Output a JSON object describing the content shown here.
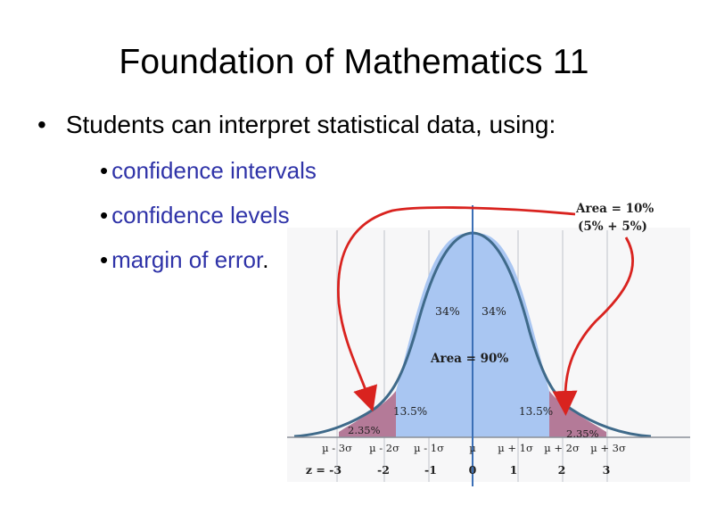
{
  "title": "Foundation of Mathematics 11",
  "main_bullet": "Students can interpret statistical data, using:",
  "sub_bullets": [
    {
      "text": "confidence intervals",
      "suffix": ""
    },
    {
      "text": "confidence levels",
      "suffix": ""
    },
    {
      "text": "margin of error",
      "suffix": "."
    }
  ],
  "figure": {
    "area_outer_line1": "Area = 10%",
    "area_outer_line2": "(5% + 5%)",
    "area_inner": "Area = 90%",
    "pct_34_left": "34%",
    "pct_34_right": "34%",
    "pct_135_left": "13.5%",
    "pct_135_right": "13.5%",
    "pct_235_left": "2.35%",
    "pct_235_right": "2.35%",
    "sigma_labels": [
      "µ - 3σ",
      "µ - 2σ",
      "µ - 1σ",
      "µ",
      "µ + 1σ",
      "µ + 2σ",
      "µ + 3σ"
    ],
    "z_prefix": "z = -3",
    "z_labels": [
      "-2",
      "-1",
      "0",
      "1",
      "2",
      "3"
    ],
    "colors": {
      "middle_fill": "#a9c6f2",
      "tail_fill": "#b47a98",
      "curve": "#3f6a8a",
      "arrow": "#d9231f",
      "axis_vertical": "#3b6fb6",
      "sub_bullet_text": "#2f33a8"
    }
  }
}
